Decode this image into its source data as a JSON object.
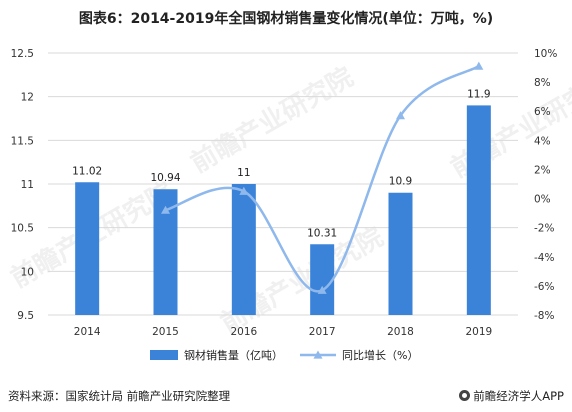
{
  "title": "图表6：2014-2019年全国钢材销售量变化情况(单位：万吨，%)",
  "footer": {
    "source": "资料来源：国家统计局 前瞻产业研究院整理",
    "brand": "前瞻经济学人APP"
  },
  "watermark": "前瞻产业研究院",
  "colors": {
    "bar": "#3a83d9",
    "line": "#8fb8ec",
    "grid": "#d9d9d9"
  },
  "chart_data": {
    "type": "bar",
    "categories": [
      "2014",
      "2015",
      "2016",
      "2017",
      "2018",
      "2019"
    ],
    "series": [
      {
        "name": "钢材销售量（亿吨）",
        "type": "bar",
        "axis": "left",
        "values": [
          11.02,
          10.94,
          11,
          10.31,
          10.9,
          11.9
        ],
        "labels": [
          "11.02",
          "10.94",
          "11",
          "10.31",
          "10.9",
          "11.9"
        ]
      },
      {
        "name": "同比增长（%）",
        "type": "line",
        "axis": "right",
        "values": [
          null,
          -0.8,
          0.5,
          -6.3,
          5.7,
          9.1
        ]
      }
    ],
    "y_left": {
      "ticks": [
        "9.5",
        "10",
        "10.5",
        "11",
        "11.5",
        "12",
        "12.5"
      ],
      "ylim": [
        9.5,
        12.5
      ]
    },
    "y_right": {
      "ticks": [
        "-8%",
        "-6%",
        "-4%",
        "-2%",
        "0%",
        "2%",
        "4%",
        "6%",
        "8%",
        "10%"
      ],
      "ylim": [
        -8,
        10
      ]
    },
    "grid": "horizontal",
    "legend": "bottom"
  }
}
